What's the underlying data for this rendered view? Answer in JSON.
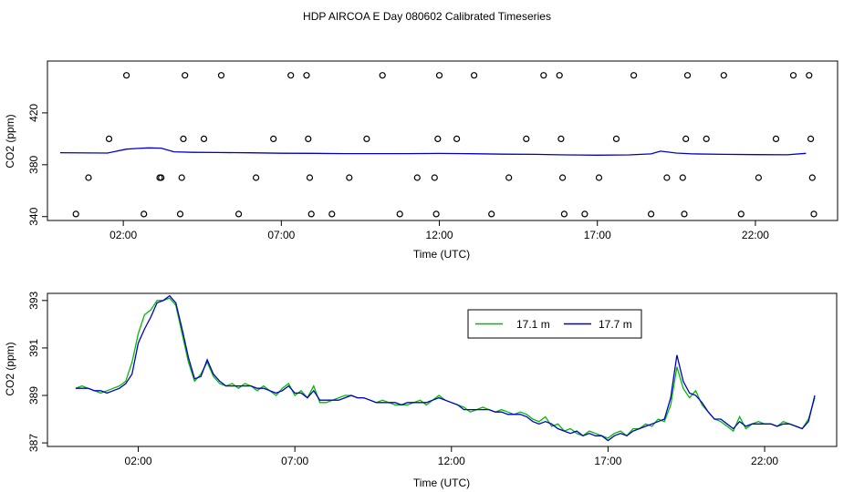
{
  "page": {
    "title": "HDP AIRCOA E  Day 080602  Calibrated Timeseries"
  },
  "chart_data": [
    {
      "type": "scatter",
      "xlabel": "Time (UTC)",
      "ylabel": "CO2 (ppm)",
      "x_ticks": [
        "02:00",
        "07:00",
        "12:00",
        "17:00",
        "22:00"
      ],
      "x_tick_values": [
        2,
        7,
        12,
        17,
        22
      ],
      "y_ticks": [
        "340",
        "380",
        "420"
      ],
      "y_tick_values": [
        340,
        380,
        420
      ],
      "xlim": [
        -0.4,
        24.6
      ],
      "ylim": [
        337,
        460
      ],
      "series": [
        {
          "marker": "open-circle",
          "points": [
            [
              0.5,
              342
            ],
            [
              0.9,
              370
            ],
            [
              1.55,
              400
            ],
            [
              2.1,
              449
            ],
            [
              2.65,
              342
            ],
            [
              3.15,
              370
            ],
            [
              3.2,
              370
            ],
            [
              3.8,
              342
            ],
            [
              3.85,
              370
            ],
            [
              3.9,
              400
            ],
            [
              3.95,
              449
            ],
            [
              4.55,
              400
            ],
            [
              5.1,
              449
            ],
            [
              5.65,
              342
            ],
            [
              6.2,
              370
            ],
            [
              6.75,
              400
            ],
            [
              7.3,
              449
            ],
            [
              7.8,
              449
            ],
            [
              7.85,
              400
            ],
            [
              7.9,
              370
            ],
            [
              7.95,
              342
            ],
            [
              8.6,
              342
            ],
            [
              9.15,
              370
            ],
            [
              9.7,
              400
            ],
            [
              10.2,
              449
            ],
            [
              10.75,
              342
            ],
            [
              11.3,
              370
            ],
            [
              11.85,
              370
            ],
            [
              11.9,
              342
            ],
            [
              11.95,
              400
            ],
            [
              12.0,
              449
            ],
            [
              12.55,
              400
            ],
            [
              13.1,
              449
            ],
            [
              13.65,
              342
            ],
            [
              14.2,
              370
            ],
            [
              14.75,
              400
            ],
            [
              15.3,
              449
            ],
            [
              15.8,
              449
            ],
            [
              15.85,
              400
            ],
            [
              15.9,
              370
            ],
            [
              15.95,
              342
            ],
            [
              16.6,
              342
            ],
            [
              17.05,
              370
            ],
            [
              17.6,
              400
            ],
            [
              18.15,
              449
            ],
            [
              18.7,
              342
            ],
            [
              19.2,
              370
            ],
            [
              19.7,
              370
            ],
            [
              19.75,
              342
            ],
            [
              19.8,
              400
            ],
            [
              19.85,
              449
            ],
            [
              20.45,
              400
            ],
            [
              21.0,
              449
            ],
            [
              21.55,
              342
            ],
            [
              22.1,
              370
            ],
            [
              22.65,
              400
            ],
            [
              23.2,
              449
            ],
            [
              23.7,
              449
            ],
            [
              23.75,
              400
            ],
            [
              23.8,
              370
            ],
            [
              23.85,
              342
            ]
          ]
        },
        {
          "name": "",
          "marker": "line",
          "color": "#0000cc",
          "points": [
            [
              0.0,
              389.3
            ],
            [
              1.0,
              389.1
            ],
            [
              1.5,
              389.0
            ],
            [
              2.1,
              392
            ],
            [
              2.4,
              392.5
            ],
            [
              2.8,
              393
            ],
            [
              3.2,
              392.8
            ],
            [
              3.6,
              390
            ],
            [
              4.2,
              389.6
            ],
            [
              5.0,
              389.4
            ],
            [
              6.0,
              389.2
            ],
            [
              7.0,
              388.9
            ],
            [
              8.0,
              388.8
            ],
            [
              9.0,
              388.6
            ],
            [
              10.0,
              388.6
            ],
            [
              11.0,
              388.6
            ],
            [
              12.0,
              388.7
            ],
            [
              13.0,
              388.5
            ],
            [
              14.0,
              388.2
            ],
            [
              15.0,
              388.0
            ],
            [
              16.0,
              387.6
            ],
            [
              17.0,
              387.4
            ],
            [
              18.0,
              387.6
            ],
            [
              18.7,
              388.4
            ],
            [
              19.0,
              390.5
            ],
            [
              19.5,
              389.0
            ],
            [
              20.0,
              388.4
            ],
            [
              21.0,
              388.0
            ],
            [
              22.0,
              387.8
            ],
            [
              23.0,
              387.7
            ],
            [
              23.6,
              388.8
            ]
          ]
        }
      ]
    },
    {
      "type": "line",
      "xlabel": "Time (UTC)",
      "ylabel": "CO2 (ppm)",
      "x_ticks": [
        "02:00",
        "07:00",
        "12:00",
        "17:00",
        "22:00"
      ],
      "x_tick_values": [
        2,
        7,
        12,
        17,
        22
      ],
      "y_ticks": [
        "387",
        "389",
        "391",
        "393"
      ],
      "y_tick_values": [
        387,
        389,
        391,
        393
      ],
      "xlim": [
        -0.9,
        24.3
      ],
      "ylim": [
        386.85,
        393.3
      ],
      "legend": "top-right-inside",
      "series": [
        {
          "name": "17.1 m",
          "color": "#00bb00",
          "x": [
            0.0,
            0.2,
            0.4,
            0.6,
            0.8,
            1.0,
            1.2,
            1.4,
            1.6,
            1.8,
            2.0,
            2.2,
            2.4,
            2.6,
            2.8,
            3.0,
            3.2,
            3.4,
            3.6,
            3.8,
            4.0,
            4.2,
            4.4,
            4.6,
            4.8,
            5.0,
            5.2,
            5.4,
            5.6,
            5.8,
            6.0,
            6.2,
            6.4,
            6.6,
            6.8,
            7.0,
            7.2,
            7.4,
            7.6,
            7.8,
            8.0,
            8.2,
            8.4,
            8.6,
            8.8,
            9.0,
            9.2,
            9.4,
            9.6,
            9.8,
            10.0,
            10.2,
            10.4,
            10.6,
            10.8,
            11.0,
            11.2,
            11.4,
            11.6,
            11.8,
            12.0,
            12.2,
            12.4,
            12.6,
            12.8,
            13.0,
            13.2,
            13.4,
            13.6,
            13.8,
            14.0,
            14.2,
            14.4,
            14.6,
            14.8,
            15.0,
            15.2,
            15.4,
            15.6,
            15.8,
            16.0,
            16.2,
            16.4,
            16.6,
            16.8,
            17.0,
            17.2,
            17.4,
            17.6,
            17.8,
            18.0,
            18.2,
            18.4,
            18.6,
            18.8,
            19.0,
            19.2,
            19.4,
            19.6,
            19.8,
            20.0,
            20.2,
            20.4,
            20.6,
            20.8,
            21.0,
            21.2,
            21.4,
            21.6,
            21.8,
            22.0,
            22.2,
            22.4,
            22.6,
            22.8,
            23.0,
            23.2,
            23.4,
            23.6
          ],
          "values": [
            389.3,
            389.4,
            389.3,
            389.2,
            389.1,
            389.2,
            389.3,
            389.4,
            389.6,
            390.4,
            391.6,
            392.4,
            392.6,
            393.0,
            393.0,
            393.1,
            392.8,
            391.6,
            390.4,
            389.6,
            389.9,
            390.4,
            389.8,
            389.5,
            389.4,
            389.5,
            389.3,
            389.5,
            389.4,
            389.2,
            389.4,
            389.2,
            389.0,
            389.3,
            389.5,
            389.0,
            389.2,
            388.9,
            389.4,
            388.7,
            388.7,
            388.8,
            388.9,
            389.0,
            389.0,
            388.9,
            388.9,
            388.8,
            388.7,
            388.8,
            388.7,
            388.6,
            388.6,
            388.6,
            388.7,
            388.8,
            388.6,
            388.8,
            389.0,
            388.8,
            388.7,
            388.6,
            388.5,
            388.3,
            388.4,
            388.5,
            388.4,
            388.3,
            388.4,
            388.3,
            388.2,
            388.3,
            388.2,
            388.0,
            387.9,
            388.1,
            387.7,
            387.8,
            387.5,
            387.6,
            387.4,
            387.3,
            387.5,
            387.4,
            387.3,
            387.2,
            387.4,
            387.5,
            387.3,
            387.6,
            387.6,
            387.8,
            387.7,
            388.0,
            387.9,
            388.6,
            390.2,
            389.3,
            388.9,
            389.2,
            388.6,
            388.3,
            388.0,
            387.9,
            387.7,
            387.5,
            388.1,
            387.6,
            387.8,
            387.9,
            387.8,
            387.8,
            387.7,
            387.9,
            387.8,
            387.7,
            387.6,
            388.0,
            388.9
          ]
        },
        {
          "name": "17.7 m",
          "color": "#0000cc",
          "x": [
            0.0,
            0.2,
            0.4,
            0.6,
            0.8,
            1.0,
            1.2,
            1.4,
            1.6,
            1.8,
            2.0,
            2.2,
            2.4,
            2.6,
            2.8,
            3.0,
            3.2,
            3.4,
            3.6,
            3.8,
            4.0,
            4.2,
            4.4,
            4.6,
            4.8,
            5.0,
            5.2,
            5.4,
            5.6,
            5.8,
            6.0,
            6.2,
            6.4,
            6.6,
            6.8,
            7.0,
            7.2,
            7.4,
            7.6,
            7.8,
            8.0,
            8.2,
            8.4,
            8.6,
            8.8,
            9.0,
            9.2,
            9.4,
            9.6,
            9.8,
            10.0,
            10.2,
            10.4,
            10.6,
            10.8,
            11.0,
            11.2,
            11.4,
            11.6,
            11.8,
            12.0,
            12.2,
            12.4,
            12.6,
            12.8,
            13.0,
            13.2,
            13.4,
            13.6,
            13.8,
            14.0,
            14.2,
            14.4,
            14.6,
            14.8,
            15.0,
            15.2,
            15.4,
            15.6,
            15.8,
            16.0,
            16.2,
            16.4,
            16.6,
            16.8,
            17.0,
            17.2,
            17.4,
            17.6,
            17.8,
            18.0,
            18.2,
            18.4,
            18.6,
            18.8,
            19.0,
            19.2,
            19.4,
            19.6,
            19.8,
            20.0,
            20.2,
            20.4,
            20.6,
            20.8,
            21.0,
            21.2,
            21.4,
            21.6,
            21.8,
            22.0,
            22.2,
            22.4,
            22.6,
            22.8,
            23.0,
            23.2,
            23.4,
            23.6
          ],
          "values": [
            389.3,
            389.3,
            389.3,
            389.2,
            389.2,
            389.1,
            389.2,
            389.3,
            389.5,
            389.9,
            391.2,
            391.8,
            392.3,
            392.9,
            393.0,
            393.2,
            392.9,
            391.8,
            390.6,
            389.7,
            389.8,
            390.5,
            389.9,
            389.6,
            389.4,
            389.4,
            389.4,
            389.4,
            389.4,
            389.3,
            389.3,
            389.2,
            389.1,
            389.2,
            389.4,
            389.1,
            389.1,
            388.9,
            389.2,
            388.8,
            388.8,
            388.8,
            388.8,
            388.9,
            389.0,
            388.9,
            388.9,
            388.8,
            388.7,
            388.7,
            388.7,
            388.7,
            388.6,
            388.7,
            388.7,
            388.7,
            388.7,
            388.8,
            388.9,
            388.8,
            388.7,
            388.6,
            388.4,
            388.4,
            388.4,
            388.4,
            388.4,
            388.3,
            388.3,
            388.2,
            388.2,
            388.2,
            388.1,
            387.9,
            387.8,
            387.9,
            387.8,
            387.6,
            387.5,
            387.4,
            387.5,
            387.3,
            387.4,
            387.3,
            387.3,
            387.1,
            387.3,
            387.4,
            387.3,
            387.5,
            387.6,
            387.7,
            387.8,
            387.9,
            388.0,
            388.9,
            390.7,
            389.6,
            389.1,
            389.0,
            388.7,
            388.3,
            388.0,
            388.0,
            387.8,
            387.6,
            387.9,
            387.7,
            387.8,
            387.8,
            387.8,
            387.8,
            387.7,
            387.8,
            387.8,
            387.7,
            387.6,
            387.9,
            389.0
          ]
        }
      ]
    }
  ]
}
